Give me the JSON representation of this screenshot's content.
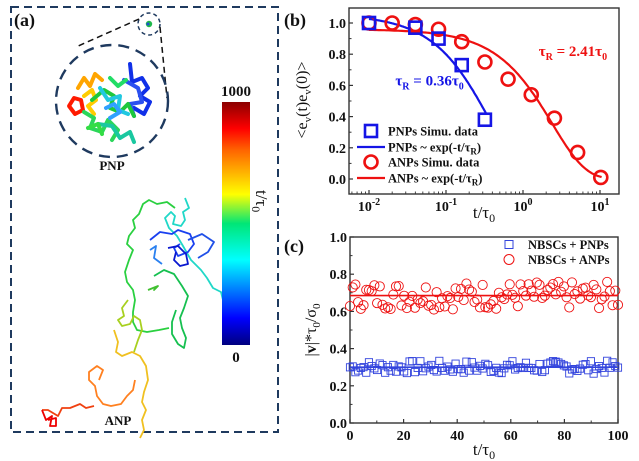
{
  "figure": {
    "panel_a": {
      "label": "(a)",
      "pnp_label": "PNP",
      "anp_label": "ANP",
      "colorbar": {
        "max_label": "1000",
        "min_label": "0",
        "title": "t/τ",
        "title_sub": "0",
        "colormap": "jet",
        "range": [
          0,
          1000
        ]
      },
      "border_color": "#1f3a5f"
    },
    "panel_b": {
      "label": "(b)"
    },
    "panel_c": {
      "label": "(c)"
    }
  },
  "chart_data": [
    {
      "type": "scatter",
      "panel": "(b)",
      "xscale": "log",
      "xlim": [
        0.006,
        15
      ],
      "ylim": [
        -0.1,
        1.1
      ],
      "xlabel": "t/τ",
      "xlabel_sub": "0",
      "ylabel": "<e_v(t)e_v(0)>",
      "xticks": [
        {
          "value": 0.01,
          "base": "10",
          "exp": "-2"
        },
        {
          "value": 0.1,
          "base": "10",
          "exp": "-1"
        },
        {
          "value": 1,
          "base": "10",
          "exp": "0"
        },
        {
          "value": 10,
          "base": "10",
          "exp": "1"
        }
      ],
      "yticks": [
        "0.0",
        "0.2",
        "0.4",
        "0.6",
        "0.8",
        "1.0"
      ],
      "ytick_values": [
        0.0,
        0.2,
        0.4,
        0.6,
        0.8,
        1.0
      ],
      "series": [
        {
          "name": "PNPs Simu. data",
          "marker": "square",
          "color": "#1515e6",
          "x": [
            0.01,
            0.04,
            0.08,
            0.16,
            0.32
          ],
          "y": [
            1.0,
            0.97,
            0.9,
            0.73,
            0.38
          ]
        },
        {
          "name": "PNPs ~ exp(-t/τR)",
          "kind": "fit-line",
          "color": "#1515e6",
          "tau_R": 0.36,
          "amplitude": 1.055,
          "x_range": [
            0.01,
            0.33
          ]
        },
        {
          "name": "ANPs Simu. data",
          "marker": "circle",
          "color": "#ee1111",
          "x": [
            0.01,
            0.02,
            0.04,
            0.08,
            0.16,
            0.32,
            0.64,
            1.28,
            2.56,
            5.12,
            10.24
          ],
          "y": [
            1.0,
            1.0,
            0.99,
            0.96,
            0.88,
            0.75,
            0.64,
            0.54,
            0.39,
            0.17,
            0.01
          ]
        },
        {
          "name": "ANPs ~ exp(-t/τR)",
          "kind": "fit-line",
          "color": "#ee1111",
          "tau_R": 2.41,
          "amplitude": 0.96,
          "x_range": [
            0.01,
            10.5
          ]
        }
      ],
      "legend": {
        "placement": "bottom-left",
        "entries": [
          {
            "text": "PNPs Simu. data",
            "sub": "",
            "tail": ""
          },
          {
            "text": "PNPs ~ exp(-t/τ",
            "sub": "R",
            "tail": ")"
          },
          {
            "text": "ANPs Simu. data",
            "sub": "",
            "tail": ""
          },
          {
            "text": "ANPs ~ exp(-t/τ",
            "sub": "R",
            "tail": ")"
          }
        ]
      },
      "annotations": [
        {
          "text_main": "τ",
          "text_sub": "R",
          "text_rest": " = 0.36τ",
          "text_sub2": "0",
          "color": "#1515e6",
          "anchor_x": 0.022,
          "anchor_y": 0.6
        },
        {
          "text_main": "τ",
          "text_sub": "R",
          "text_rest": " = 2.41τ",
          "text_sub2": "0",
          "color": "#ee1111",
          "anchor_x": 1.6,
          "anchor_y": 0.79
        }
      ]
    },
    {
      "type": "scatter",
      "panel": "(c)",
      "xlim": [
        0,
        100
      ],
      "ylim": [
        0,
        1.0
      ],
      "xlabel": "t/τ",
      "xlabel_sub": "0",
      "ylabel": "|v|*τ0/σ0",
      "xticks": [
        "0",
        "20",
        "40",
        "60",
        "80",
        "100"
      ],
      "xtick_values": [
        0,
        20,
        40,
        60,
        80,
        100
      ],
      "yticks": [
        "0.0",
        "0.2",
        "0.4",
        "0.6",
        "0.8",
        "1.0"
      ],
      "ytick_values": [
        0,
        0.2,
        0.4,
        0.6,
        0.8,
        1.0
      ],
      "series": [
        {
          "name": "NBSCs + PNPs",
          "marker": "square",
          "color": "#3344dd",
          "mean": 0.3,
          "spread": 0.035,
          "count": 100
        },
        {
          "name": "NBSCs + ANPs",
          "marker": "circle",
          "color": "#ee1111",
          "mean": 0.685,
          "spread": 0.075,
          "count": 100
        }
      ],
      "legend": {
        "placement": "top-right",
        "entries": [
          "NBSCs + PNPs",
          "NBSCs + ANPs"
        ]
      }
    }
  ]
}
